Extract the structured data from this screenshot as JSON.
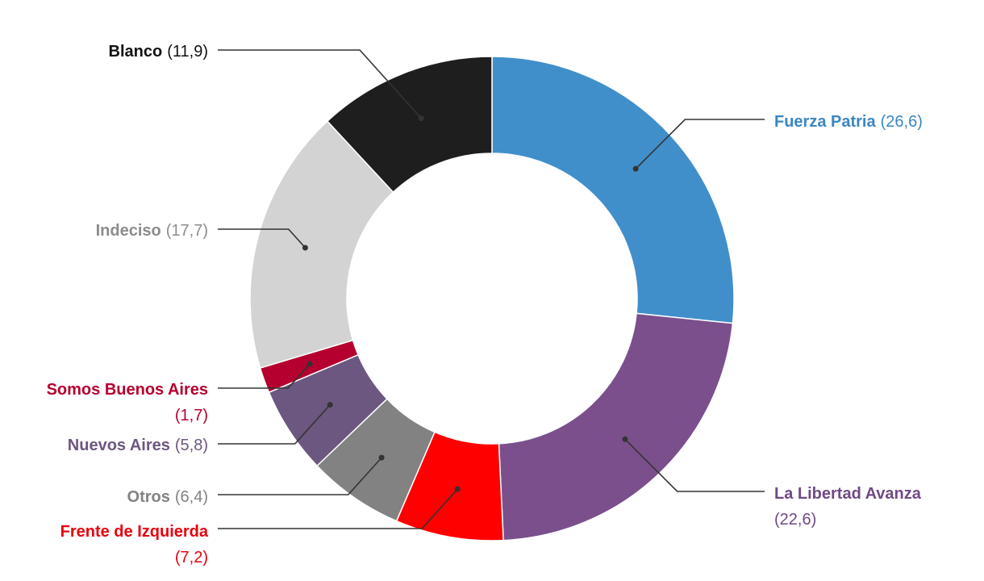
{
  "chart_data": {
    "type": "pie",
    "donut": true,
    "slices": [
      {
        "label": "Fuerza Patria",
        "value": 26.6,
        "value_text": "(26,6)",
        "color": "#418fca",
        "text_color": "#3a86c1"
      },
      {
        "label": "La Libertad Avanza",
        "value": 22.6,
        "value_text": "(22,6)",
        "color": "#7a4f8c",
        "text_color": "#6f4a86"
      },
      {
        "label": "Frente de Izquierda",
        "value": 7.2,
        "value_text": "(7,2)",
        "color": "#ff0000",
        "text_color": "#e8000c"
      },
      {
        "label": "Otros",
        "value": 6.4,
        "value_text": "(6,4)",
        "color": "#828282",
        "text_color": "#828282"
      },
      {
        "label": "Nuevos Aires",
        "value": 5.8,
        "value_text": "(5,8)",
        "color": "#6c5780",
        "text_color": "#6c5780"
      },
      {
        "label": "Somos Buenos Aires",
        "value": 1.7,
        "value_text": "(1,7)",
        "color": "#b5002f",
        "text_color": "#b5002f"
      },
      {
        "label": "Indeciso",
        "value": 17.7,
        "value_text": "(17,7)",
        "color": "#d3d3d3",
        "text_color": "#8c8c8c"
      },
      {
        "label": "Blanco",
        "value": 11.9,
        "value_text": "(11,9)",
        "color": "#1e1e1e",
        "text_color": "#111111"
      }
    ]
  }
}
